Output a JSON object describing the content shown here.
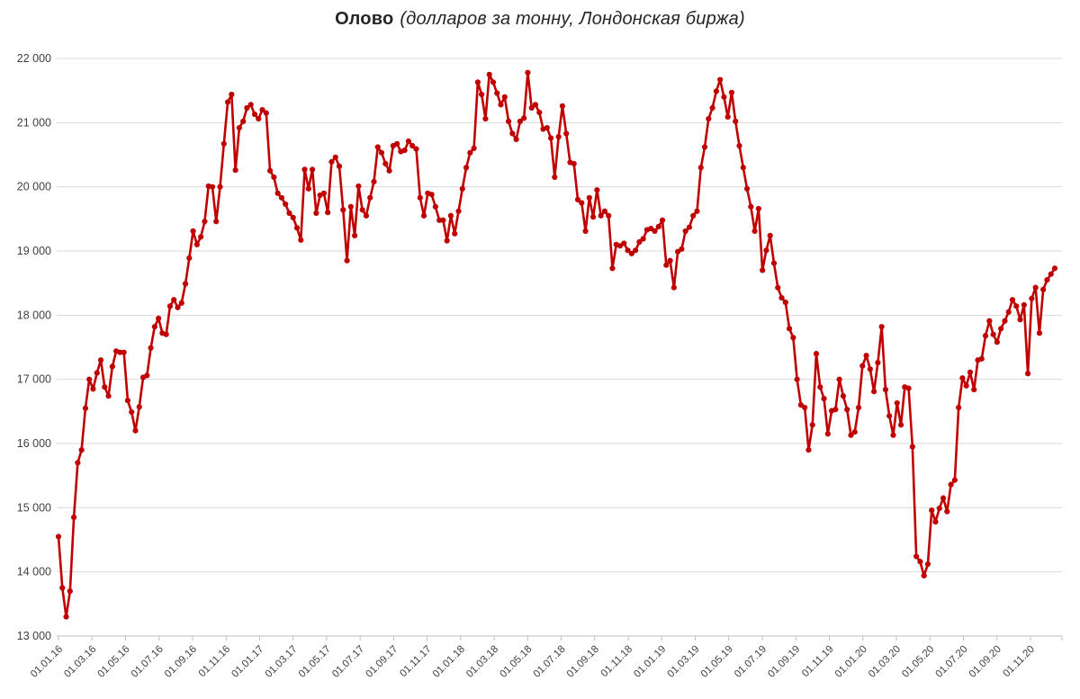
{
  "title": {
    "main": "Олово",
    "subtitle": "(долларов за тонну, Лондонская биржа)"
  },
  "chart_data": {
    "type": "line",
    "title": "Олово (долларов за тонну, Лондонская биржа)",
    "xlabel": "",
    "ylabel": "",
    "ylim": [
      13000,
      22000
    ],
    "y_ticks": [
      13000,
      14000,
      15000,
      16000,
      17000,
      18000,
      19000,
      20000,
      21000,
      22000
    ],
    "y_tick_labels": [
      "13 000",
      "14 000",
      "15 000",
      "16 000",
      "17 000",
      "18 000",
      "19 000",
      "20 000",
      "21 000",
      "22 000"
    ],
    "x_tick_labels": [
      "01.01.16",
      "01.03.16",
      "01.05.16",
      "01.07.16",
      "01.09.16",
      "01.11.16",
      "01.01.17",
      "01.03.17",
      "01.05.17",
      "01.07.17",
      "01.09.17",
      "01.11.17",
      "01.01.18",
      "01.03.18",
      "01.05.18",
      "01.07.18",
      "01.09.18",
      "01.11.18",
      "01.01.19",
      "01.03.19",
      "01.05.19",
      "01.07.19",
      "01.09.19",
      "01.11.19",
      "01.01.20",
      "01.03.20",
      "01.05.20",
      "01.07.20",
      "01.09.20",
      "01.11.20"
    ],
    "grid": true,
    "legend": "none",
    "marker": "circle",
    "colors": {
      "line": "#C00000",
      "grid": "#D9D9D9",
      "axis": "#BFBFBF",
      "label": "#404040",
      "title": "#262626"
    },
    "series": [
      {
        "name": "Олово",
        "color": "#C00000",
        "values": [
          14550,
          13750,
          13300,
          13700,
          14850,
          15700,
          15900,
          16550,
          17000,
          16850,
          17100,
          17300,
          16880,
          16740,
          17200,
          17440,
          17420,
          17420,
          16670,
          16490,
          16200,
          16570,
          17030,
          17060,
          17490,
          17820,
          17950,
          17720,
          17700,
          18140,
          18240,
          18120,
          18190,
          18490,
          18890,
          19310,
          19100,
          19220,
          19460,
          20010,
          20000,
          19460,
          20000,
          20670,
          21320,
          21440,
          20260,
          20920,
          21020,
          21230,
          21280,
          21130,
          21060,
          21200,
          21150,
          20250,
          20150,
          19900,
          19830,
          19730,
          19590,
          19520,
          19360,
          19170,
          20270,
          19970,
          20270,
          19590,
          19870,
          19900,
          19600,
          20390,
          20460,
          20320,
          19640,
          18850,
          19690,
          19240,
          20010,
          19640,
          19550,
          19830,
          20080,
          20620,
          20530,
          20360,
          20250,
          20640,
          20670,
          20550,
          20570,
          20710,
          20640,
          20590,
          19830,
          19550,
          19900,
          19880,
          19690,
          19480,
          19480,
          19160,
          19550,
          19270,
          19620,
          19970,
          20300,
          20530,
          20600,
          21630,
          21440,
          21060,
          21750,
          21630,
          21460,
          21280,
          21400,
          21020,
          20830,
          20740,
          21020,
          21070,
          21780,
          21230,
          21280,
          21160,
          20900,
          20920,
          20760,
          20150,
          20780,
          21260,
          20830,
          20380,
          20360,
          19800,
          19750,
          19310,
          19830,
          19530,
          19950,
          19550,
          19620,
          19550,
          18730,
          19100,
          19080,
          19120,
          19010,
          18960,
          19010,
          19140,
          19190,
          19330,
          19350,
          19310,
          19380,
          19480,
          18780,
          18850,
          18430,
          18990,
          19030,
          19310,
          19370,
          19550,
          19620,
          20300,
          20620,
          21060,
          21230,
          21490,
          21670,
          21400,
          21090,
          21470,
          21020,
          20640,
          20300,
          19970,
          19690,
          19310,
          19660,
          18700,
          19010,
          19240,
          18810,
          18430,
          18270,
          18200,
          17790,
          17650,
          17000,
          16600,
          16560,
          15900,
          16290,
          17400,
          16880,
          16700,
          16150,
          16510,
          16530,
          17000,
          16740,
          16530,
          16130,
          16180,
          16560,
          17210,
          17370,
          17160,
          16810,
          17260,
          17820,
          16840,
          16430,
          16130,
          16630,
          16290,
          16880,
          16860,
          15950,
          14240,
          14160,
          13940,
          14120,
          14960,
          14780,
          14990,
          15150,
          14940,
          15360,
          15430,
          16560,
          17020,
          16900,
          17110,
          16840,
          17300,
          17320,
          17680,
          17910,
          17700,
          17580,
          17790,
          17910,
          18050,
          18240,
          18140,
          17930,
          18160,
          17090,
          18260,
          18430,
          17720,
          18400,
          18550,
          18640,
          18730
        ]
      }
    ]
  }
}
